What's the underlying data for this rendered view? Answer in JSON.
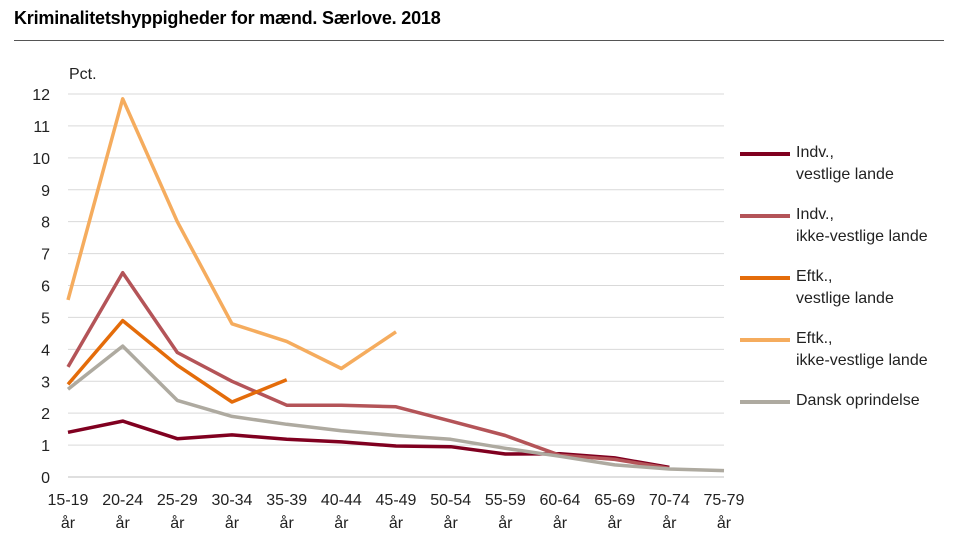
{
  "title": "Kriminalitetshyppigheder for mænd. Særlove. 2018",
  "chart_data": {
    "type": "line",
    "ylabel": "Pct.",
    "ylim": [
      0,
      12
    ],
    "yticks": [
      "0",
      "1",
      "2",
      "3",
      "4",
      "5",
      "6",
      "7",
      "8",
      "9",
      "10",
      "11",
      "12"
    ],
    "categories": [
      [
        "15-19",
        "år"
      ],
      [
        "20-24",
        "år"
      ],
      [
        "25-29",
        "år"
      ],
      [
        "30-34",
        "år"
      ],
      [
        "35-39",
        "år"
      ],
      [
        "40-44",
        "år"
      ],
      [
        "45-49",
        "år"
      ],
      [
        "50-54",
        "år"
      ],
      [
        "55-59",
        "år"
      ],
      [
        "60-64",
        "år"
      ],
      [
        "65-69",
        "år"
      ],
      [
        "70-74",
        "år"
      ],
      [
        "75-79",
        "år"
      ]
    ],
    "grid": true,
    "legend_position": "right",
    "series": [
      {
        "name": "Indv., vestlige lande",
        "label_lines": [
          "Indv.,",
          "vestlige lande"
        ],
        "color": "#800020",
        "values": [
          1.4,
          1.75,
          1.2,
          1.32,
          1.18,
          1.1,
          0.97,
          0.95,
          0.72,
          0.73,
          0.6,
          0.3,
          null
        ]
      },
      {
        "name": "Indv., ikke-vestlige lande",
        "label_lines": [
          "Indv.,",
          "ikke-vestlige lande"
        ],
        "color": "#b45458",
        "values": [
          3.45,
          6.4,
          3.9,
          3.0,
          2.25,
          2.25,
          2.2,
          1.75,
          1.3,
          0.68,
          0.55,
          0.27,
          null
        ]
      },
      {
        "name": "Eftk., vestlige lande",
        "label_lines": [
          "Eftk.,",
          "vestlige lande"
        ],
        "color": "#e46c0a",
        "values": [
          2.9,
          4.9,
          3.5,
          2.35,
          3.05,
          null,
          null,
          null,
          null,
          null,
          null,
          null,
          null
        ]
      },
      {
        "name": "Eftk., ikke-vestlige lande",
        "label_lines": [
          "Eftk.,",
          "ikke-vestlige lande"
        ],
        "color": "#f5ac5e",
        "values": [
          5.55,
          11.85,
          8.0,
          4.8,
          4.25,
          3.4,
          4.55,
          null,
          null,
          null,
          null,
          null,
          null
        ]
      },
      {
        "name": "Dansk oprindelse",
        "label_lines": [
          "Dansk oprindelse"
        ],
        "color": "#aeaaa0",
        "values": [
          2.75,
          4.1,
          2.4,
          1.9,
          1.65,
          1.45,
          1.3,
          1.18,
          0.9,
          0.65,
          0.38,
          0.25,
          0.2
        ]
      }
    ]
  }
}
